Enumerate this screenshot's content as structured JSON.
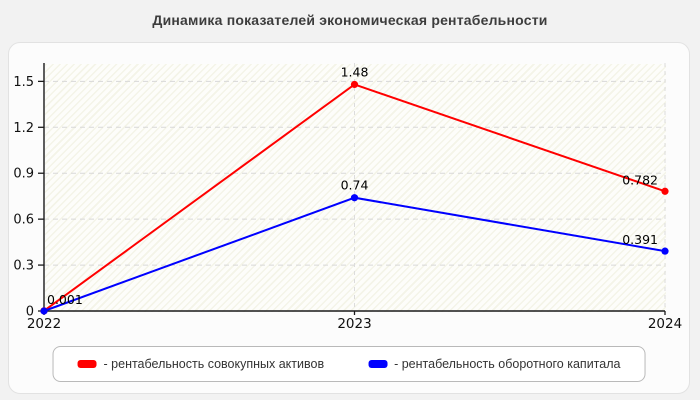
{
  "page": {
    "title": "Динамика показателей экономическая рентабельности"
  },
  "chart_data": {
    "type": "line",
    "title": "Динамика показателей экономическая рентабельности",
    "categories": [
      "2022",
      "2023",
      "2024"
    ],
    "series": [
      {
        "name": "рентабельность совокупных активов",
        "color": "#ff0000",
        "values": [
          0.001,
          1.48,
          0.782
        ],
        "point_labels": [
          "0.001",
          "1.48",
          "0.782"
        ]
      },
      {
        "name": "рентабельность оборотного капитала",
        "color": "#0000ff",
        "values": [
          0,
          0.74,
          0.391
        ],
        "point_labels": [
          "",
          "0.74",
          "0.391"
        ]
      }
    ],
    "legend": {
      "position": "bottom",
      "labels": [
        "- рентабельность совокупных активов",
        "- рентабельность оборотного капитала"
      ]
    },
    "yticks": [
      0,
      0.3,
      0.6,
      0.9,
      1.2,
      1.5
    ],
    "ytick_labels": [
      "0",
      "0.3",
      "0.6",
      "0.9",
      "1.2",
      "1.5"
    ],
    "ylim": [
      0,
      1.62
    ],
    "grid": {
      "horizontal": "dashed",
      "vertical": "dashed-at-2023-2024"
    },
    "plot_background": "light-diagonal-hatch"
  },
  "colors": {
    "red_series": "#ff0000",
    "blue_series": "#0000ff",
    "page_bg": "#f2f2f2",
    "panel_bg": "#fcfcfc",
    "grid": "#d8d8d8",
    "axis": "#1a1a1a",
    "title_text": "#3d3d3d"
  }
}
